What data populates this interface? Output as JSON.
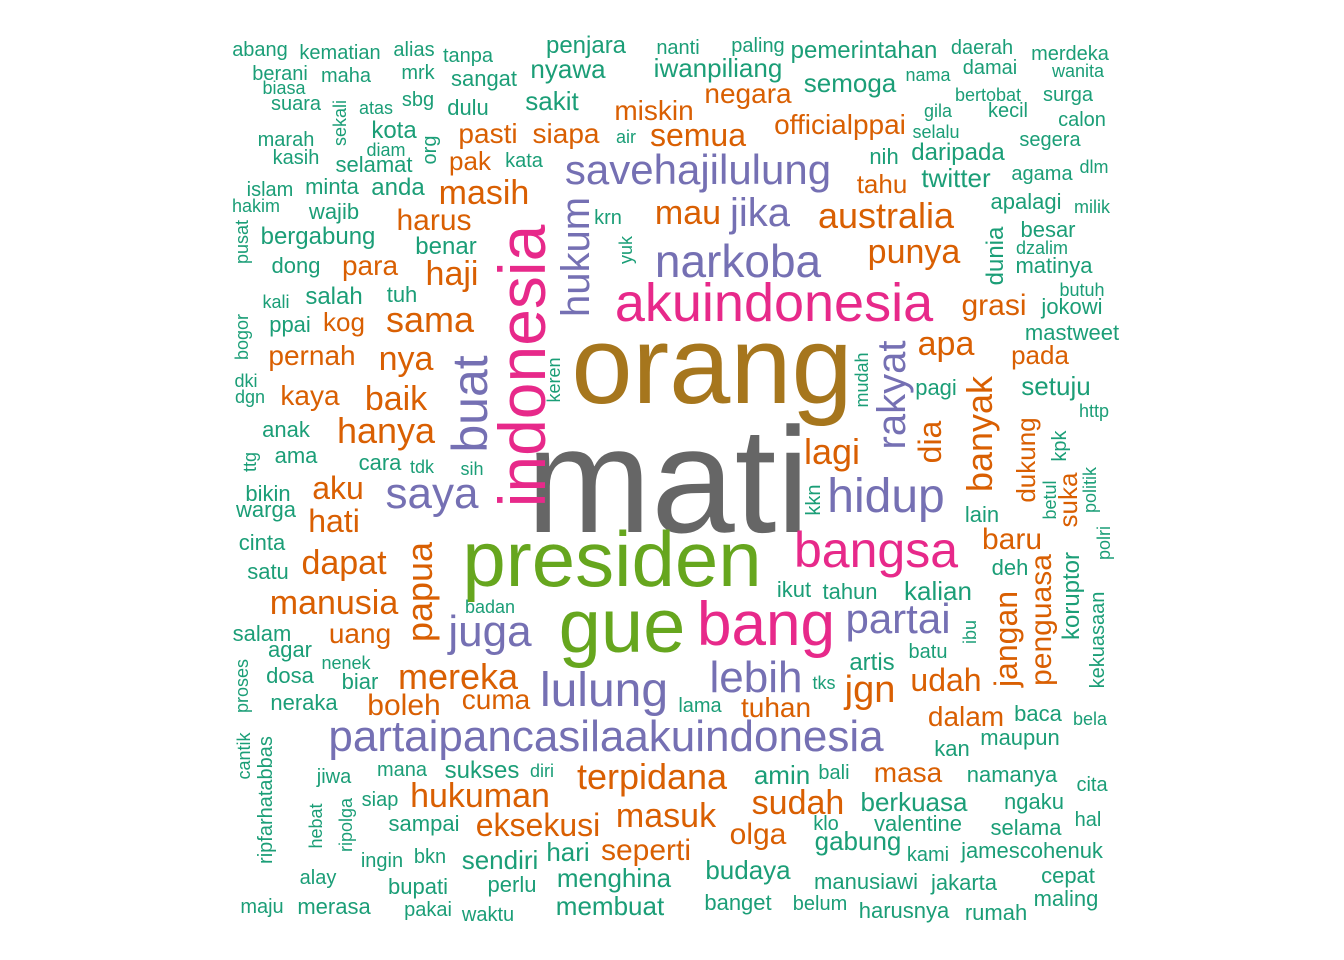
{
  "palette": {
    "c1": "#1b9e77",
    "c2": "#d95f02",
    "c3": "#7570b3",
    "c4": "#e7298a",
    "c5": "#66a61e",
    "c6": "#a6761d",
    "c7": "#666666"
  },
  "words": [
    {
      "text": "mati",
      "color": "c7",
      "size": 150
    },
    {
      "text": "orang",
      "color": "c6",
      "size": 110
    },
    {
      "text": "presiden",
      "color": "c5",
      "size": 78
    },
    {
      "text": "gue",
      "color": "c5",
      "size": 76
    },
    {
      "text": "indonesia",
      "color": "c4",
      "size": 66,
      "vertical": true
    },
    {
      "text": "bang",
      "color": "c4",
      "size": 62
    },
    {
      "text": "akuindonesia",
      "color": "c4",
      "size": 54
    },
    {
      "text": "bangsa",
      "color": "c4",
      "size": 50
    },
    {
      "text": "buat",
      "color": "c3",
      "size": 50,
      "vertical": true
    },
    {
      "text": "hidup",
      "color": "c3",
      "size": 48
    },
    {
      "text": "lulung",
      "color": "c3",
      "size": 48
    },
    {
      "text": "narkoba",
      "color": "c3",
      "size": 46
    },
    {
      "text": "partaipancasilaakuindonesia",
      "color": "c3",
      "size": 44
    },
    {
      "text": "juga",
      "color": "c3",
      "size": 44
    },
    {
      "text": "lebih",
      "color": "c3",
      "size": 44
    },
    {
      "text": "saya",
      "color": "c3",
      "size": 44
    },
    {
      "text": "savehajilulung",
      "color": "c3",
      "size": 42
    },
    {
      "text": "partai",
      "color": "c3",
      "size": 42
    },
    {
      "text": "jika",
      "color": "c3",
      "size": 40
    },
    {
      "text": "rakyat",
      "color": "c3",
      "size": 40,
      "vertical": true
    },
    {
      "text": "hukum",
      "color": "c3",
      "size": 40,
      "vertical": true
    },
    {
      "text": "jgn",
      "color": "c2",
      "size": 38
    },
    {
      "text": "terpidana",
      "color": "c2",
      "size": 36
    },
    {
      "text": "mereka",
      "color": "c2",
      "size": 36
    },
    {
      "text": "hanya",
      "color": "c2",
      "size": 36
    },
    {
      "text": "papua",
      "color": "c2",
      "size": 36,
      "vertical": true
    },
    {
      "text": "banyak",
      "color": "c2",
      "size": 36,
      "vertical": true
    },
    {
      "text": "australia",
      "color": "c2",
      "size": 36
    },
    {
      "text": "lagi",
      "color": "c2",
      "size": 36
    },
    {
      "text": "sama",
      "color": "c2",
      "size": 36
    },
    {
      "text": "hukuman",
      "color": "c2",
      "size": 34
    },
    {
      "text": "masuk",
      "color": "c2",
      "size": 34
    },
    {
      "text": "sudah",
      "color": "c2",
      "size": 34
    },
    {
      "text": "dapat",
      "color": "c2",
      "size": 34
    },
    {
      "text": "manusia",
      "color": "c2",
      "size": 34
    },
    {
      "text": "masih",
      "color": "c2",
      "size": 34
    },
    {
      "text": "punya",
      "color": "c2",
      "size": 34
    },
    {
      "text": "mau",
      "color": "c2",
      "size": 34
    },
    {
      "text": "haji",
      "color": "c2",
      "size": 34
    },
    {
      "text": "apa",
      "color": "c2",
      "size": 34
    },
    {
      "text": "baik",
      "color": "c2",
      "size": 34
    },
    {
      "text": "nya",
      "color": "c2",
      "size": 34
    },
    {
      "text": "semua",
      "color": "c2",
      "size": 32
    },
    {
      "text": "eksekusi",
      "color": "c2",
      "size": 32
    },
    {
      "text": "udah",
      "color": "c2",
      "size": 32
    },
    {
      "text": "aku",
      "color": "c2",
      "size": 32
    },
    {
      "text": "hati",
      "color": "c2",
      "size": 32
    },
    {
      "text": "dia",
      "color": "c2",
      "size": 32,
      "vertical": true
    },
    {
      "text": "jangan",
      "color": "c2",
      "size": 32,
      "vertical": true
    },
    {
      "text": "seperti",
      "color": "c2",
      "size": 30
    },
    {
      "text": "boleh",
      "color": "c2",
      "size": 30
    },
    {
      "text": "harus",
      "color": "c2",
      "size": 30
    },
    {
      "text": "olga",
      "color": "c2",
      "size": 30
    },
    {
      "text": "baru",
      "color": "c2",
      "size": 30
    },
    {
      "text": "grasi",
      "color": "c2",
      "size": 30
    },
    {
      "text": "penguasa",
      "color": "c2",
      "size": 30,
      "vertical": true
    },
    {
      "text": "dalam",
      "color": "c2",
      "size": 28
    },
    {
      "text": "tuhan",
      "color": "c2",
      "size": 28
    },
    {
      "text": "masa",
      "color": "c2",
      "size": 28
    },
    {
      "text": "cuma",
      "color": "c2",
      "size": 28
    },
    {
      "text": "uang",
      "color": "c2",
      "size": 28
    },
    {
      "text": "para",
      "color": "c2",
      "size": 28
    },
    {
      "text": "pernah",
      "color": "c2",
      "size": 28
    },
    {
      "text": "kaya",
      "color": "c2",
      "size": 28
    },
    {
      "text": "siapa",
      "color": "c2",
      "size": 28
    },
    {
      "text": "pasti",
      "color": "c2",
      "size": 28
    },
    {
      "text": "miskin",
      "color": "c2",
      "size": 28
    },
    {
      "text": "negara",
      "color": "c2",
      "size": 28
    },
    {
      "text": "officialppai",
      "color": "c2",
      "size": 28
    },
    {
      "text": "tahu",
      "color": "c2",
      "size": 26
    },
    {
      "text": "pada",
      "color": "c2",
      "size": 26
    },
    {
      "text": "pak",
      "color": "c2",
      "size": 26
    },
    {
      "text": "kog",
      "color": "c2",
      "size": 26
    },
    {
      "text": "suka",
      "color": "c2",
      "size": 26,
      "vertical": true
    },
    {
      "text": "dukung",
      "color": "c2",
      "size": 26,
      "vertical": true
    },
    {
      "text": "amin",
      "color": "c1",
      "size": 26
    },
    {
      "text": "menghina",
      "color": "c1",
      "size": 26
    },
    {
      "text": "membuat",
      "color": "c1",
      "size": 26
    },
    {
      "text": "budaya",
      "color": "c1",
      "size": 26
    },
    {
      "text": "iwanpiliang",
      "color": "c1",
      "size": 26
    },
    {
      "text": "semoga",
      "color": "c1",
      "size": 26
    },
    {
      "text": "nyawa",
      "color": "c1",
      "size": 26
    },
    {
      "text": "sakit",
      "color": "c1",
      "size": 26
    },
    {
      "text": "gabung",
      "color": "c1",
      "size": 26
    },
    {
      "text": "kalian",
      "color": "c1",
      "size": 26
    },
    {
      "text": "sendiri",
      "color": "c1",
      "size": 26
    },
    {
      "text": "hari",
      "color": "c1",
      "size": 26
    },
    {
      "text": "twitter",
      "color": "c1",
      "size": 26
    },
    {
      "text": "setuju",
      "color": "c1",
      "size": 26
    },
    {
      "text": "berkuasa",
      "color": "c1",
      "size": 26
    },
    {
      "text": "sukses",
      "color": "c1",
      "size": 24
    },
    {
      "text": "artis",
      "color": "c1",
      "size": 24
    },
    {
      "text": "salah",
      "color": "c1",
      "size": 24
    },
    {
      "text": "penjara",
      "color": "c1",
      "size": 24
    },
    {
      "text": "pemerintahan",
      "color": "c1",
      "size": 24
    },
    {
      "text": "benar",
      "color": "c1",
      "size": 24
    },
    {
      "text": "daripada",
      "color": "c1",
      "size": 24
    },
    {
      "text": "bergabung",
      "color": "c1",
      "size": 24
    },
    {
      "text": "kota",
      "color": "c1",
      "size": 24
    },
    {
      "text": "anda",
      "color": "c1",
      "size": 24
    },
    {
      "text": "dunia",
      "color": "c1",
      "size": 24,
      "vertical": true
    },
    {
      "text": "koruptor",
      "color": "c1",
      "size": 24,
      "vertical": true
    },
    {
      "text": "valentine",
      "color": "c1",
      "size": 22
    },
    {
      "text": "selamat",
      "color": "c1",
      "size": 22
    },
    {
      "text": "anak",
      "color": "c1",
      "size": 22
    },
    {
      "text": "ama",
      "color": "c1",
      "size": 22
    },
    {
      "text": "sangat",
      "color": "c1",
      "size": 22
    },
    {
      "text": "dulu",
      "color": "c1",
      "size": 22
    },
    {
      "text": "sampai",
      "color": "c1",
      "size": 22
    },
    {
      "text": "bupati",
      "color": "c1",
      "size": 22
    },
    {
      "text": "perlu",
      "color": "c1",
      "size": 22
    },
    {
      "text": "banget",
      "color": "c1",
      "size": 22
    },
    {
      "text": "manusiawi",
      "color": "c1",
      "size": 22
    },
    {
      "text": "namanya",
      "color": "c1",
      "size": 22
    },
    {
      "text": "maupun",
      "color": "c1",
      "size": 22
    },
    {
      "text": "mastweet",
      "color": "c1",
      "size": 22
    },
    {
      "text": "matinya",
      "color": "c1",
      "size": 22
    },
    {
      "text": "jamescohenuk",
      "color": "c1",
      "size": 22
    },
    {
      "text": "jokowi",
      "color": "c1",
      "size": 22
    },
    {
      "text": "apalagi",
      "color": "c1",
      "size": 22
    },
    {
      "text": "besar",
      "color": "c1",
      "size": 22
    },
    {
      "text": "ngaku",
      "color": "c1",
      "size": 22
    },
    {
      "text": "selama",
      "color": "c1",
      "size": 22
    },
    {
      "text": "rumah",
      "color": "c1",
      "size": 22
    },
    {
      "text": "harusnya",
      "color": "c1",
      "size": 22
    },
    {
      "text": "jakarta",
      "color": "c1",
      "size": 22
    },
    {
      "text": "tahun",
      "color": "c1",
      "size": 22
    },
    {
      "text": "ikut",
      "color": "c1",
      "size": 22
    },
    {
      "text": "nih",
      "color": "c1",
      "size": 22
    },
    {
      "text": "kan",
      "color": "c1",
      "size": 22
    },
    {
      "text": "baca",
      "color": "c1",
      "size": 22
    },
    {
      "text": "deh",
      "color": "c1",
      "size": 22
    },
    {
      "text": "lain",
      "color": "c1",
      "size": 22
    },
    {
      "text": "pagi",
      "color": "c1",
      "size": 22
    },
    {
      "text": "cara",
      "color": "c1",
      "size": 22
    },
    {
      "text": "biar",
      "color": "c1",
      "size": 22
    },
    {
      "text": "agar",
      "color": "c1",
      "size": 22
    },
    {
      "text": "dosa",
      "color": "c1",
      "size": 22
    },
    {
      "text": "neraka",
      "color": "c1",
      "size": 22
    },
    {
      "text": "salam",
      "color": "c1",
      "size": 22
    },
    {
      "text": "satu",
      "color": "c1",
      "size": 22
    },
    {
      "text": "cinta",
      "color": "c1",
      "size": 22
    },
    {
      "text": "warga",
      "color": "c1",
      "size": 22
    },
    {
      "text": "bikin",
      "color": "c1",
      "size": 22
    },
    {
      "text": "dong",
      "color": "c1",
      "size": 22
    },
    {
      "text": "wajib",
      "color": "c1",
      "size": 22
    },
    {
      "text": "minta",
      "color": "c1",
      "size": 22
    },
    {
      "text": "ppai",
      "color": "c1",
      "size": 22
    },
    {
      "text": "tuh",
      "color": "c1",
      "size": 22
    },
    {
      "text": "merasa",
      "color": "c1",
      "size": 22
    },
    {
      "text": "maling",
      "color": "c1",
      "size": 22
    },
    {
      "text": "cepat",
      "color": "c1",
      "size": 22
    },
    {
      "text": "belum",
      "color": "c1",
      "size": 20
    },
    {
      "text": "waktu",
      "color": "c1",
      "size": 20
    },
    {
      "text": "pakai",
      "color": "c1",
      "size": 20
    },
    {
      "text": "maju",
      "color": "c1",
      "size": 20
    },
    {
      "text": "alay",
      "color": "c1",
      "size": 20
    },
    {
      "text": "ingin",
      "color": "c1",
      "size": 20
    },
    {
      "text": "bkn",
      "color": "c1",
      "size": 20
    },
    {
      "text": "siap",
      "color": "c1",
      "size": 20
    },
    {
      "text": "mana",
      "color": "c1",
      "size": 20
    },
    {
      "text": "jiwa",
      "color": "c1",
      "size": 20
    },
    {
      "text": "diri",
      "color": "c1",
      "size": 18
    },
    {
      "text": "bali",
      "color": "c1",
      "size": 20
    },
    {
      "text": "klo",
      "color": "c1",
      "size": 20
    },
    {
      "text": "kami",
      "color": "c1",
      "size": 20
    },
    {
      "text": "batu",
      "color": "c1",
      "size": 20
    },
    {
      "text": "lama",
      "color": "c1",
      "size": 20
    },
    {
      "text": "tks",
      "color": "c1",
      "size": 18
    },
    {
      "text": "kkn",
      "color": "c1",
      "size": 20,
      "vertical": true
    },
    {
      "text": "mudah",
      "color": "c1",
      "size": 18,
      "vertical": true
    },
    {
      "text": "ibu",
      "color": "c1",
      "size": 18,
      "vertical": true
    },
    {
      "text": "kpk",
      "color": "c1",
      "size": 20,
      "vertical": true
    },
    {
      "text": "kekuasaan",
      "color": "c1",
      "size": 20,
      "vertical": true
    },
    {
      "text": "betul",
      "color": "c1",
      "size": 18,
      "vertical": true
    },
    {
      "text": "politik",
      "color": "c1",
      "size": 18,
      "vertical": true
    },
    {
      "text": "polri",
      "color": "c1",
      "size": 18,
      "vertical": true
    },
    {
      "text": "http",
      "color": "c1",
      "size": 18
    },
    {
      "text": "bela",
      "color": "c1",
      "size": 18
    },
    {
      "text": "cita",
      "color": "c1",
      "size": 20
    },
    {
      "text": "hal",
      "color": "c1",
      "size": 20
    },
    {
      "text": "abang",
      "color": "c1",
      "size": 20
    },
    {
      "text": "kematian",
      "color": "c1",
      "size": 20
    },
    {
      "text": "alias",
      "color": "c1",
      "size": 20
    },
    {
      "text": "tanpa",
      "color": "c1",
      "size": 20
    },
    {
      "text": "nanti",
      "color": "c1",
      "size": 20
    },
    {
      "text": "paling",
      "color": "c1",
      "size": 20
    },
    {
      "text": "daerah",
      "color": "c1",
      "size": 20
    },
    {
      "text": "merdeka",
      "color": "c1",
      "size": 20
    },
    {
      "text": "berani",
      "color": "c1",
      "size": 20
    },
    {
      "text": "maha",
      "color": "c1",
      "size": 20
    },
    {
      "text": "mrk",
      "color": "c1",
      "size": 20
    },
    {
      "text": "nama",
      "color": "c1",
      "size": 18
    },
    {
      "text": "damai",
      "color": "c1",
      "size": 20
    },
    {
      "text": "wanita",
      "color": "c1",
      "size": 18
    },
    {
      "text": "biasa",
      "color": "c1",
      "size": 18
    },
    {
      "text": "suara",
      "color": "c1",
      "size": 20
    },
    {
      "text": "atas",
      "color": "c1",
      "size": 18
    },
    {
      "text": "sbg",
      "color": "c1",
      "size": 20
    },
    {
      "text": "bertobat",
      "color": "c1",
      "size": 18
    },
    {
      "text": "surga",
      "color": "c1",
      "size": 20
    },
    {
      "text": "gila",
      "color": "c1",
      "size": 18
    },
    {
      "text": "kecil",
      "color": "c1",
      "size": 20
    },
    {
      "text": "calon",
      "color": "c1",
      "size": 20
    },
    {
      "text": "selalu",
      "color": "c1",
      "size": 18
    },
    {
      "text": "segera",
      "color": "c1",
      "size": 20
    },
    {
      "text": "marah",
      "color": "c1",
      "size": 20
    },
    {
      "text": "air",
      "color": "c1",
      "size": 18
    },
    {
      "text": "diam",
      "color": "c1",
      "size": 18
    },
    {
      "text": "kasih",
      "color": "c1",
      "size": 20
    },
    {
      "text": "kata",
      "color": "c1",
      "size": 20
    },
    {
      "text": "agama",
      "color": "c1",
      "size": 20
    },
    {
      "text": "dlm",
      "color": "c1",
      "size": 18
    },
    {
      "text": "islam",
      "color": "c1",
      "size": 20
    },
    {
      "text": "hakim",
      "color": "c1",
      "size": 18
    },
    {
      "text": "milik",
      "color": "c1",
      "size": 18
    },
    {
      "text": "krn",
      "color": "c1",
      "size": 20
    },
    {
      "text": "dzalim",
      "color": "c1",
      "size": 18
    },
    {
      "text": "kali",
      "color": "c1",
      "size": 18
    },
    {
      "text": "butuh",
      "color": "c1",
      "size": 18
    },
    {
      "text": "keren",
      "color": "c1",
      "size": 18,
      "vertical": true
    },
    {
      "text": "tdk",
      "color": "c1",
      "size": 18
    },
    {
      "text": "sih",
      "color": "c1",
      "size": 18
    },
    {
      "text": "badan",
      "color": "c1",
      "size": 18
    },
    {
      "text": "nenek",
      "color": "c1",
      "size": 18
    },
    {
      "text": "sekali",
      "color": "c1",
      "size": 18,
      "vertical": true
    },
    {
      "text": "org",
      "color": "c1",
      "size": 20,
      "vertical": true
    },
    {
      "text": "yuk",
      "color": "c1",
      "size": 18,
      "vertical": true
    },
    {
      "text": "pusat",
      "color": "c1",
      "size": 18,
      "vertical": true
    },
    {
      "text": "bogor",
      "color": "c1",
      "size": 18,
      "vertical": true
    },
    {
      "text": "dki",
      "color": "c1",
      "size": 18
    },
    {
      "text": "dgn",
      "color": "c1",
      "size": 18
    },
    {
      "text": "ttg",
      "color": "c1",
      "size": 18,
      "vertical": true
    },
    {
      "text": "proses",
      "color": "c1",
      "size": 18,
      "vertical": true
    },
    {
      "text": "cantik",
      "color": "c1",
      "size": 18,
      "vertical": true
    },
    {
      "text": "ripfarhatabbas",
      "color": "c1",
      "size": 20,
      "vertical": true
    },
    {
      "text": "hebat",
      "color": "c1",
      "size": 18,
      "vertical": true
    },
    {
      "text": "ripolga",
      "color": "c1",
      "size": 18,
      "vertical": true
    }
  ]
}
